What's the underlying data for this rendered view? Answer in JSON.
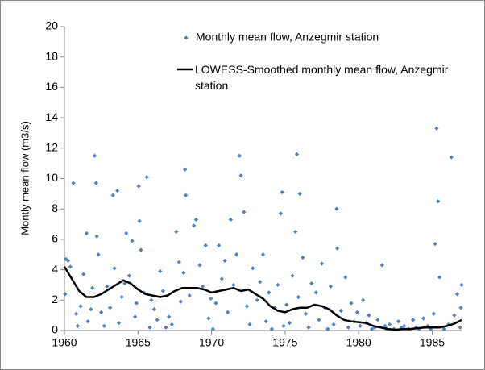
{
  "chart_data": {
    "type": "scatter",
    "y_label": "Montly mean flow (m3/s)",
    "xlim": [
      1960,
      1987
    ],
    "xticks": [
      1960,
      1965,
      1970,
      1975,
      1980,
      1985
    ],
    "ylim": [
      0,
      20
    ],
    "yticks": [
      0,
      2,
      4,
      6,
      8,
      10,
      12,
      14,
      16,
      18,
      20
    ],
    "grid": false,
    "series": [
      {
        "name": "Monthly mean flow, Anzegmir station",
        "type": "scatter",
        "color": "#4f81bd",
        "x": [
          1960.05,
          1960.1,
          1960.25,
          1960.4,
          1960.6,
          1960.8,
          1960.9,
          1961.1,
          1961.3,
          1961.5,
          1961.6,
          1961.8,
          1961.9,
          1962.05,
          1962.15,
          1962.2,
          1962.3,
          1962.5,
          1962.7,
          1962.9,
          1963.1,
          1963.3,
          1963.4,
          1963.6,
          1963.7,
          1963.9,
          1964.1,
          1964.2,
          1964.4,
          1964.6,
          1964.8,
          1964.9,
          1965.05,
          1965.1,
          1965.2,
          1965.4,
          1965.6,
          1965.8,
          1965.9,
          1966.1,
          1966.3,
          1966.5,
          1966.7,
          1966.9,
          1967.1,
          1967.3,
          1967.6,
          1967.8,
          1967.9,
          1968.1,
          1968.2,
          1968.25,
          1968.5,
          1968.8,
          1968.95,
          1969.2,
          1969.4,
          1969.6,
          1969.8,
          1969.95,
          1970.1,
          1970.3,
          1970.5,
          1970.7,
          1970.9,
          1971.1,
          1971.3,
          1971.5,
          1971.7,
          1971.9,
          1972.0,
          1972.2,
          1972.4,
          1972.6,
          1972.8,
          1973.1,
          1973.3,
          1973.5,
          1973.7,
          1973.9,
          1974.1,
          1974.3,
          1974.5,
          1974.7,
          1974.8,
          1974.9,
          1975.1,
          1975.3,
          1975.5,
          1975.7,
          1975.8,
          1975.9,
          1976.0,
          1976.2,
          1976.4,
          1976.6,
          1976.8,
          1977.1,
          1977.3,
          1977.5,
          1977.7,
          1977.9,
          1978.1,
          1978.3,
          1978.5,
          1978.55,
          1978.8,
          1979.1,
          1979.3,
          1979.5,
          1979.7,
          1979.9,
          1980.1,
          1980.3,
          1980.5,
          1980.7,
          1980.9,
          1981.1,
          1981.3,
          1981.6,
          1981.8,
          1981.9,
          1982.1,
          1982.4,
          1982.7,
          1982.9,
          1983.1,
          1983.4,
          1983.7,
          1983.9,
          1984.1,
          1984.4,
          1984.7,
          1984.9,
          1985.1,
          1985.2,
          1985.3,
          1985.4,
          1985.5,
          1985.8,
          1986.1,
          1986.3,
          1986.5,
          1986.7,
          1986.9,
          1986.95,
          1987.0
        ],
        "values": [
          2.4,
          4.7,
          4.6,
          4.2,
          9.7,
          1.1,
          0.3,
          1.6,
          3.7,
          6.4,
          0.6,
          1.4,
          2.8,
          11.5,
          9.7,
          6.2,
          5.0,
          1.2,
          0.3,
          2.9,
          1.5,
          8.9,
          4.1,
          9.2,
          0.5,
          2.2,
          3.1,
          6.4,
          3.6,
          5.9,
          0.9,
          1.8,
          9.5,
          7.2,
          5.3,
          2.5,
          10.1,
          0.2,
          2.0,
          1.4,
          0.7,
          3.9,
          2.6,
          0.2,
          0.9,
          0.4,
          6.5,
          4.5,
          1.9,
          3.8,
          10.6,
          8.9,
          2.3,
          6.9,
          7.3,
          4.3,
          2.9,
          5.6,
          0.8,
          2.1,
          0.1,
          1.8,
          5.6,
          3.4,
          4.6,
          1.2,
          7.3,
          3.0,
          5.0,
          11.5,
          10.2,
          7.8,
          1.6,
          0.4,
          4.1,
          2.0,
          3.2,
          5.0,
          0.6,
          2.5,
          0.1,
          1.5,
          3.0,
          7.7,
          9.1,
          0.3,
          1.7,
          0.5,
          3.6,
          6.5,
          11.6,
          2.2,
          9.0,
          4.8,
          1.1,
          0.2,
          3.1,
          2.5,
          0.7,
          4.4,
          1.5,
          0.1,
          2.9,
          0.4,
          8.0,
          5.4,
          1.3,
          3.5,
          0.2,
          1.8,
          0.6,
          1.2,
          0.3,
          2.0,
          0.5,
          1.0,
          0.1,
          0.2,
          0.7,
          4.3,
          0.3,
          0.1,
          0.4,
          0.1,
          0.6,
          0.2,
          0.3,
          0.1,
          0.7,
          0.2,
          0.1,
          0.8,
          0.3,
          0.1,
          1.1,
          5.7,
          13.3,
          8.5,
          3.5,
          0.1,
          0.4,
          11.4,
          1.0,
          2.4,
          0.2,
          1.5,
          3.0
        ]
      },
      {
        "name": "LOWESS-Smoothed monthly mean flow, Anzegmir station",
        "type": "line",
        "color": "#000000",
        "x": [
          1960,
          1960.5,
          1961,
          1961.5,
          1962,
          1962.5,
          1963,
          1963.5,
          1964,
          1964.5,
          1965,
          1965.5,
          1966,
          1966.5,
          1967,
          1967.5,
          1968,
          1968.5,
          1969,
          1969.5,
          1970,
          1970.5,
          1971,
          1971.5,
          1972,
          1972.5,
          1973,
          1973.5,
          1974,
          1974.5,
          1975,
          1975.5,
          1976,
          1976.5,
          1977,
          1977.5,
          1978,
          1978.5,
          1979,
          1979.5,
          1980,
          1980.5,
          1981,
          1981.5,
          1982,
          1982.5,
          1983,
          1983.5,
          1984,
          1984.5,
          1985,
          1985.5,
          1986,
          1986.5,
          1987
        ],
        "values": [
          4.2,
          3.4,
          2.6,
          2.2,
          2.2,
          2.4,
          2.7,
          3.0,
          3.3,
          3.1,
          2.7,
          2.4,
          2.3,
          2.2,
          2.3,
          2.6,
          2.8,
          2.8,
          2.8,
          2.7,
          2.5,
          2.6,
          2.7,
          2.8,
          2.6,
          2.7,
          2.4,
          2.1,
          1.6,
          1.3,
          1.2,
          1.4,
          1.5,
          1.5,
          1.7,
          1.6,
          1.4,
          1.0,
          0.7,
          0.6,
          0.55,
          0.5,
          0.3,
          0.2,
          0.1,
          0.05,
          0.1,
          0.1,
          0.15,
          0.2,
          0.2,
          0.2,
          0.3,
          0.45,
          0.7
        ]
      }
    ]
  }
}
